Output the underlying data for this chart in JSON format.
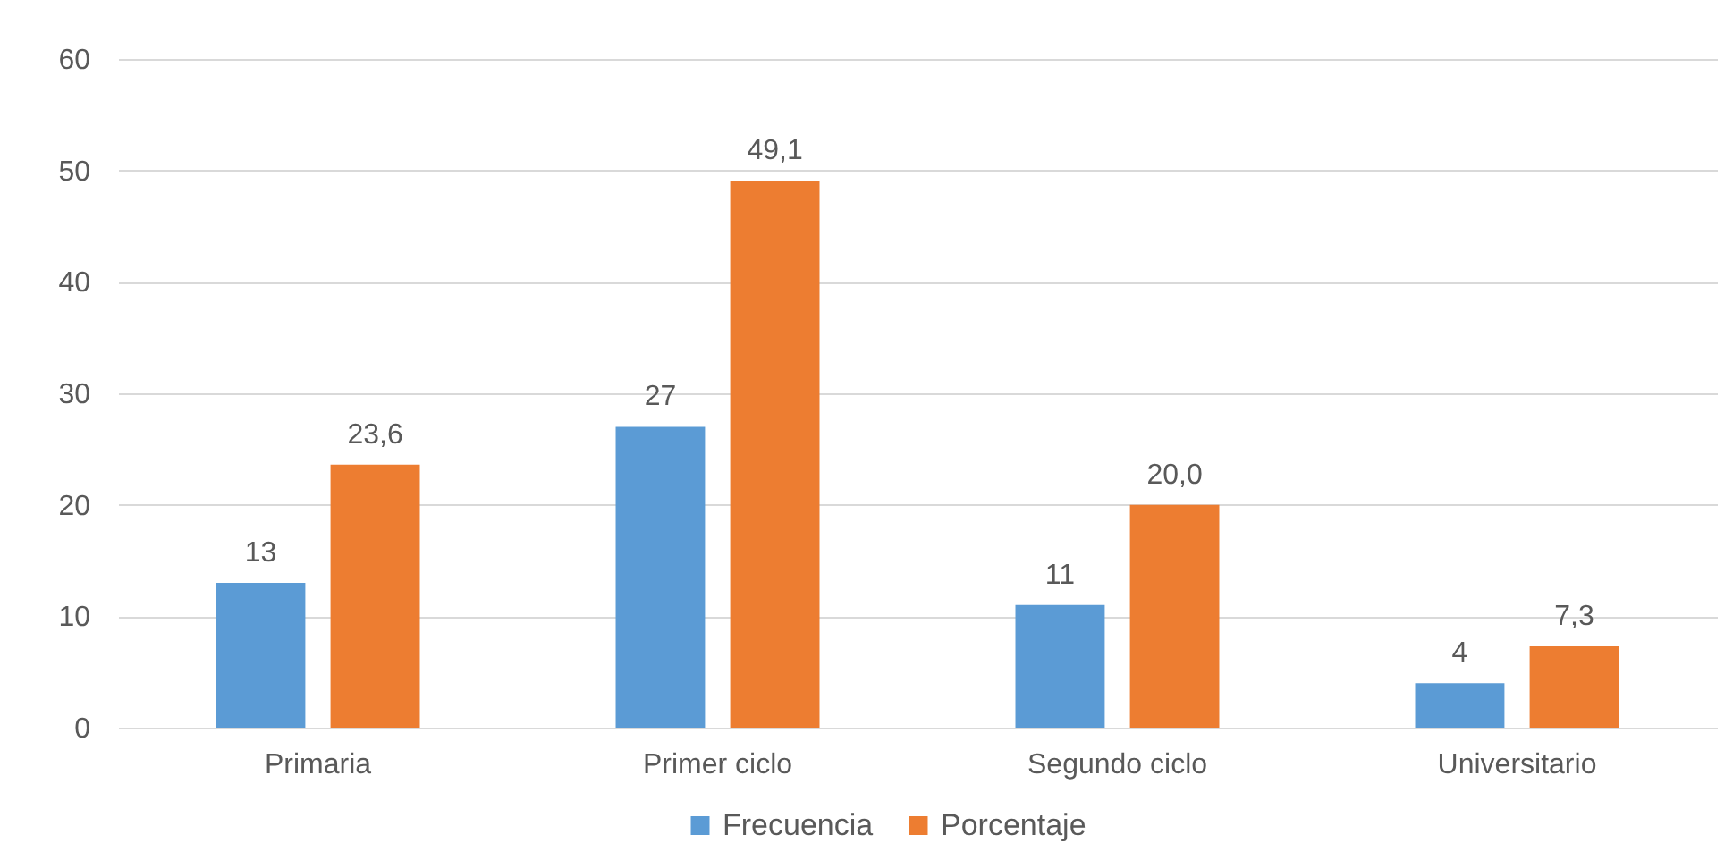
{
  "chart_data": {
    "type": "bar",
    "categories": [
      "Primaria",
      "Primer ciclo",
      "Segundo ciclo",
      "Universitario"
    ],
    "series": [
      {
        "name": "Frecuencia",
        "color": "#5b9bd5",
        "values": [
          13,
          27,
          11,
          4
        ],
        "value_labels": [
          "13",
          "27",
          "11",
          "4"
        ]
      },
      {
        "name": "Porcentaje",
        "color": "#ed7d31",
        "values": [
          23.6,
          49.1,
          20.0,
          7.3
        ],
        "value_labels": [
          "23,6",
          "49,1",
          "20,0",
          "7,3"
        ]
      }
    ],
    "ylim": [
      0,
      60
    ],
    "yticks": [
      0,
      10,
      20,
      30,
      40,
      50,
      60
    ],
    "grid": "y",
    "legend": "bottom"
  }
}
